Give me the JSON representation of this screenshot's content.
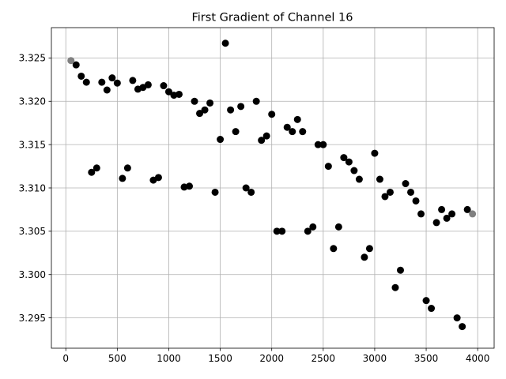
{
  "chart_data": {
    "type": "scatter",
    "title": "First Gradient of Channel 16",
    "xlabel": "",
    "ylabel": "",
    "xlim": [
      -140,
      4160
    ],
    "ylim": [
      3.2915,
      3.3285
    ],
    "xticks": [
      0,
      500,
      1000,
      1500,
      2000,
      2500,
      3000,
      3500,
      4000
    ],
    "xtick_labels": [
      "0",
      "500",
      "1000",
      "1500",
      "2000",
      "2500",
      "3000",
      "3500",
      "4000"
    ],
    "yticks": [
      3.295,
      3.3,
      3.305,
      3.31,
      3.315,
      3.32,
      3.325
    ],
    "ytick_labels": [
      "3.295",
      "3.300",
      "3.305",
      "3.310",
      "3.315",
      "3.320",
      "3.325"
    ],
    "grid": true,
    "colors": {
      "point": "#000000",
      "endpoint": "#808080",
      "grid": "#b0b0b0",
      "axes": "#000000"
    },
    "series": [
      {
        "points": [
          [
            100,
            3.3242
          ],
          [
            150,
            3.3229
          ],
          [
            200,
            3.3222
          ],
          [
            250,
            3.3118
          ],
          [
            300,
            3.3123
          ],
          [
            350,
            3.3222
          ],
          [
            400,
            3.3213
          ],
          [
            450,
            3.3227
          ],
          [
            500,
            3.3221
          ],
          [
            550,
            3.3111
          ],
          [
            600,
            3.3123
          ],
          [
            650,
            3.3224
          ],
          [
            700,
            3.3214
          ],
          [
            750,
            3.3216
          ],
          [
            800,
            3.3219
          ],
          [
            850,
            3.3109
          ],
          [
            900,
            3.3112
          ],
          [
            950,
            3.3218
          ],
          [
            1000,
            3.3211
          ],
          [
            1050,
            3.3207
          ],
          [
            1100,
            3.3208
          ],
          [
            1150,
            3.3101
          ],
          [
            1200,
            3.3102
          ],
          [
            1250,
            3.32
          ],
          [
            1300,
            3.3186
          ],
          [
            1350,
            3.319
          ],
          [
            1400,
            3.3198
          ],
          [
            1450,
            3.3095
          ],
          [
            1500,
            3.3156
          ],
          [
            1550,
            3.3267
          ],
          [
            1600,
            3.319
          ],
          [
            1650,
            3.3165
          ],
          [
            1700,
            3.3194
          ],
          [
            1750,
            3.31
          ],
          [
            1800,
            3.3095
          ],
          [
            1850,
            3.32
          ],
          [
            1900,
            3.3155
          ],
          [
            1950,
            3.316
          ],
          [
            2000,
            3.3185
          ],
          [
            2050,
            3.305
          ],
          [
            2100,
            3.305
          ],
          [
            2150,
            3.317
          ],
          [
            2200,
            3.3165
          ],
          [
            2250,
            3.3179
          ],
          [
            2300,
            3.3165
          ],
          [
            2350,
            3.305
          ],
          [
            2400,
            3.3055
          ],
          [
            2450,
            3.315
          ],
          [
            2500,
            3.315
          ],
          [
            2550,
            3.3125
          ],
          [
            2600,
            3.303
          ],
          [
            2650,
            3.3055
          ],
          [
            2700,
            3.3135
          ],
          [
            2750,
            3.313
          ],
          [
            2800,
            3.312
          ],
          [
            2850,
            3.311
          ],
          [
            2900,
            3.302
          ],
          [
            2950,
            3.303
          ],
          [
            3000,
            3.314
          ],
          [
            3050,
            3.311
          ],
          [
            3100,
            3.309
          ],
          [
            3150,
            3.3095
          ],
          [
            3200,
            3.2985
          ],
          [
            3250,
            3.3005
          ],
          [
            3300,
            3.3105
          ],
          [
            3350,
            3.3095
          ],
          [
            3400,
            3.3085
          ],
          [
            3450,
            3.307
          ],
          [
            3500,
            3.297
          ],
          [
            3550,
            3.2961
          ],
          [
            3600,
            3.306
          ],
          [
            3650,
            3.3075
          ],
          [
            3700,
            3.3065
          ],
          [
            3750,
            3.307
          ],
          [
            3800,
            3.295
          ],
          [
            3850,
            3.294
          ],
          [
            3900,
            3.3075
          ]
        ]
      },
      {
        "points": [
          [
            50,
            3.3247
          ],
          [
            3950,
            3.307
          ]
        ]
      }
    ]
  }
}
